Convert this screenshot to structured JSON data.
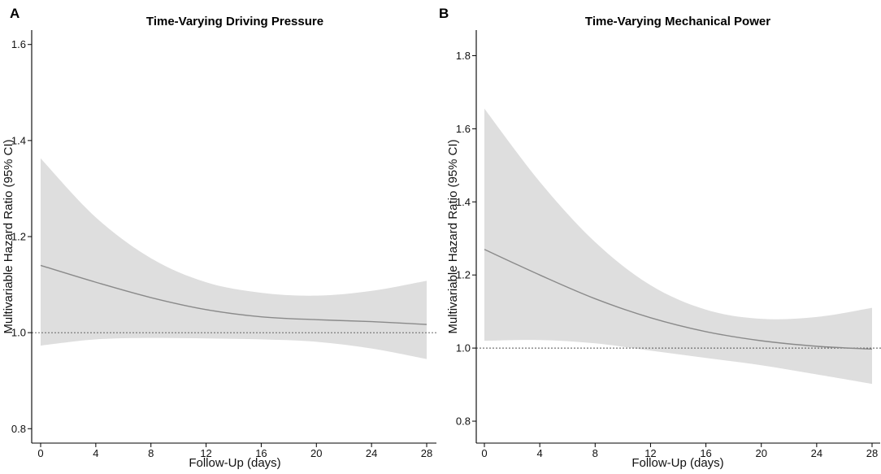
{
  "chart_data": [
    {
      "type": "line",
      "panel": "A",
      "title": "Time-Varying Driving Pressure",
      "xlabel": "Follow-Up (days)",
      "ylabel": "Multivariable Hazard Ratio (95% CI)",
      "xlim": [
        0,
        28
      ],
      "ylim": [
        0.77,
        1.63
      ],
      "xticks": [
        0,
        4,
        8,
        12,
        16,
        20,
        24,
        28
      ],
      "yticks": [
        0.8,
        1.0,
        1.2,
        1.4,
        1.6
      ],
      "reference_line": 1.0,
      "grid": false,
      "series": [
        {
          "name": "hazard_ratio",
          "x": [
            0,
            4,
            8,
            12,
            16,
            20,
            24,
            28
          ],
          "y": [
            1.14,
            1.105,
            1.073,
            1.048,
            1.033,
            1.027,
            1.023,
            1.017
          ]
        },
        {
          "name": "ci_lower",
          "x": [
            0,
            4,
            8,
            12,
            16,
            20,
            24,
            28
          ],
          "y": [
            0.973,
            0.986,
            0.989,
            0.988,
            0.986,
            0.981,
            0.967,
            0.945
          ]
        },
        {
          "name": "ci_upper",
          "x": [
            0,
            4,
            8,
            12,
            16,
            20,
            24,
            28
          ],
          "y": [
            1.363,
            1.24,
            1.155,
            1.105,
            1.083,
            1.077,
            1.087,
            1.108
          ]
        }
      ]
    },
    {
      "type": "line",
      "panel": "B",
      "title": "Time-Varying Mechanical Power",
      "xlabel": "Follow-Up (days)",
      "ylabel": "Multivariable Hazard Ratio (95% CI)",
      "xlim": [
        0,
        28
      ],
      "ylim": [
        0.74,
        1.87
      ],
      "xticks": [
        0,
        4,
        8,
        12,
        16,
        20,
        24,
        28
      ],
      "yticks": [
        0.8,
        1.0,
        1.2,
        1.4,
        1.6,
        1.8
      ],
      "reference_line": 1.0,
      "grid": false,
      "series": [
        {
          "name": "hazard_ratio",
          "x": [
            0,
            4,
            8,
            12,
            16,
            20,
            24,
            28
          ],
          "y": [
            1.27,
            1.2,
            1.135,
            1.083,
            1.045,
            1.02,
            1.005,
            0.997
          ]
        },
        {
          "name": "ci_lower",
          "x": [
            0,
            4,
            8,
            12,
            16,
            20,
            24,
            28
          ],
          "y": [
            1.02,
            1.022,
            1.013,
            0.993,
            0.973,
            0.953,
            0.928,
            0.902
          ]
        },
        {
          "name": "ci_upper",
          "x": [
            0,
            4,
            8,
            12,
            16,
            20,
            24,
            28
          ],
          "y": [
            1.655,
            1.455,
            1.29,
            1.172,
            1.105,
            1.08,
            1.085,
            1.11
          ]
        }
      ]
    }
  ]
}
